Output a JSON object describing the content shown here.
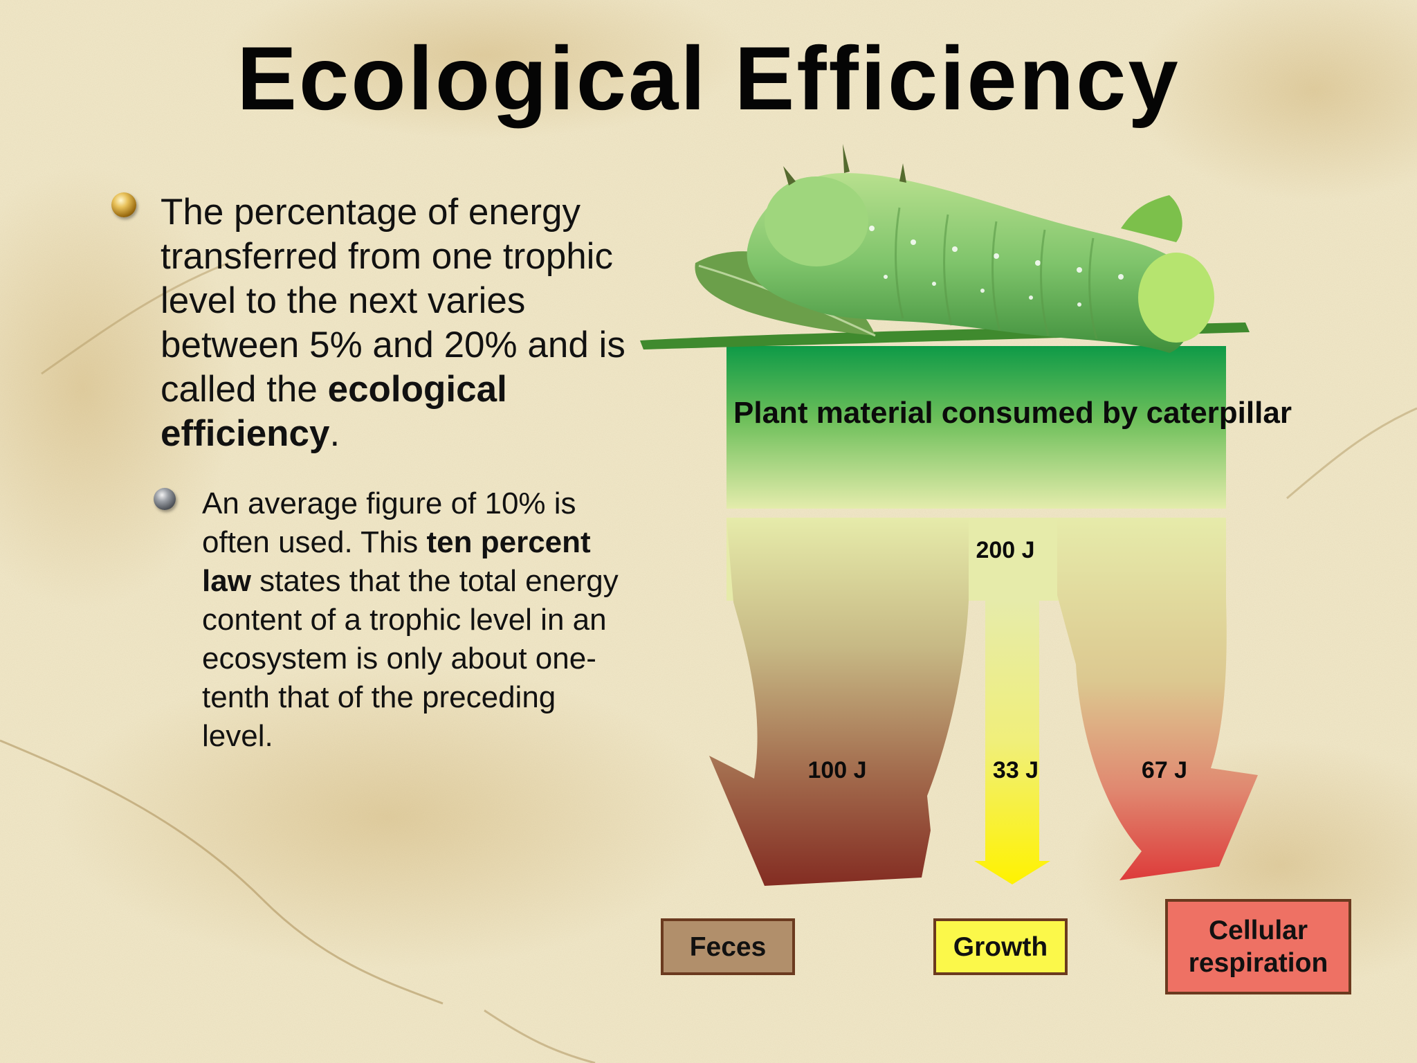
{
  "slide": {
    "title": "Ecological Efficiency",
    "bullet_main": {
      "text_before": "The percentage of energy transferred from one trophic level to the next varies between 5% and 20% and is called the ",
      "bold": "ecological efficiency",
      "text_after": "."
    },
    "bullet_sub": {
      "text_1": "An average figure of 10% is often used. This ",
      "bold": "ten percent law",
      "text_2": " states that the total energy content of a trophic level in an ecosystem is only about one-tenth that of the preceding level."
    }
  },
  "diagram": {
    "source_label": "Plant material consumed by caterpillar",
    "input_energy": "200 J",
    "flows": [
      {
        "label": "100 J",
        "destination": "Feces",
        "color": "#b18f6b"
      },
      {
        "label": "33 J",
        "destination": "Growth",
        "color": "#fbf84a"
      },
      {
        "label": "67 J",
        "destination": "Cellular respiration",
        "color": "#ee7164"
      }
    ],
    "colors": {
      "plant_box_top": "#0e9a47",
      "flow_light": "#e6ebaa",
      "feces_arrow": "#8a2f24",
      "growth_arrow": "#fff200",
      "respiration_arrow": "#e03c3c"
    },
    "image": "caterpillar-on-plant-stem"
  }
}
